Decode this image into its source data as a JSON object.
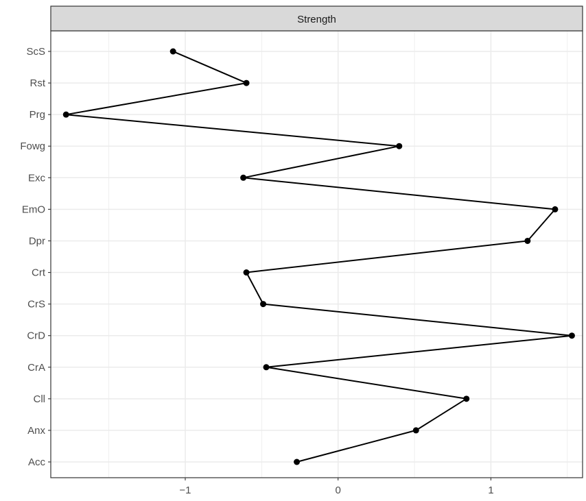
{
  "chart_data": {
    "type": "line",
    "facet_label": "Strength",
    "orientation": "horizontal",
    "categories": [
      "Acc",
      "Anx",
      "Cll",
      "CrA",
      "CrD",
      "CrS",
      "Crt",
      "Dpr",
      "EmO",
      "Exc",
      "Fowg",
      "Prg",
      "Rst",
      "ScS"
    ],
    "values": [
      -0.27,
      0.51,
      0.84,
      -0.47,
      1.53,
      -0.49,
      -0.6,
      1.24,
      1.42,
      -0.62,
      0.4,
      -1.78,
      -0.6,
      -1.08
    ],
    "x_ticks": [
      -1,
      0,
      1
    ],
    "x_tick_labels": [
      "−1",
      "0",
      "1"
    ],
    "xlim": [
      -1.88,
      1.6
    ],
    "grid": true,
    "line_color": "#000000",
    "point_color": "#000000"
  }
}
